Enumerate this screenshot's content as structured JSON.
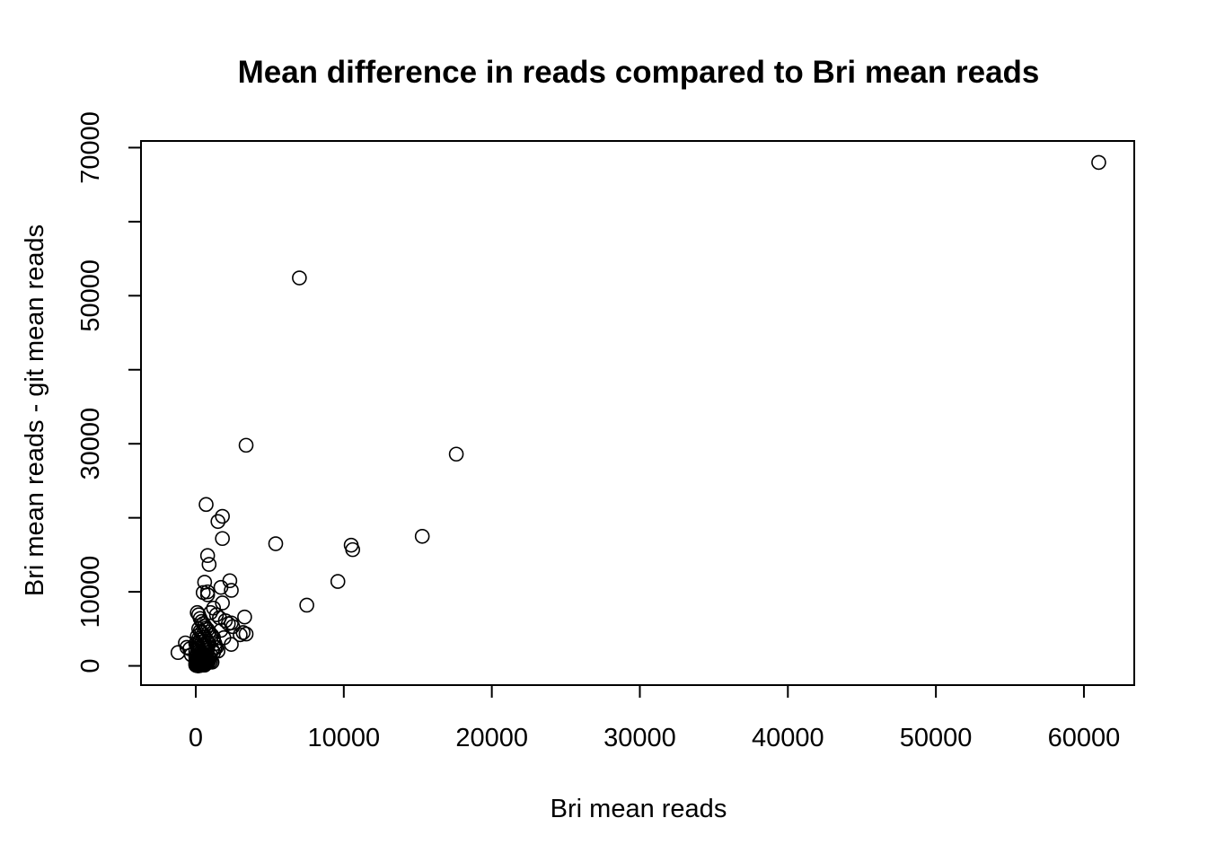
{
  "chart_data": {
    "type": "scatter",
    "title": "Mean difference in reads compared to Bri mean reads",
    "xlabel": "Bri mean reads",
    "ylabel": "Bri mean reads - git mean reads",
    "xlim": [
      -3700,
      63400
    ],
    "ylim": [
      -2600,
      70900
    ],
    "xticks": [
      0,
      10000,
      20000,
      30000,
      40000,
      50000,
      60000
    ],
    "yticks": [
      0,
      10000,
      20000,
      30000,
      40000,
      50000,
      60000,
      70000
    ],
    "ytick_labels": [
      "0",
      "10000",
      "",
      "30000",
      "",
      "50000",
      "",
      "70000"
    ],
    "grid": false,
    "marker": "open-circle",
    "x": [
      61000,
      7000,
      3400,
      17600,
      15300,
      10500,
      10600,
      9600,
      7500,
      5400,
      700,
      1800,
      1500,
      1800,
      800,
      900,
      2300,
      2400,
      800,
      500,
      1700,
      3300,
      2400,
      3200,
      3400,
      3000,
      600,
      800,
      1800,
      1200,
      1000,
      1400,
      1600,
      2000,
      2200,
      2500,
      1700,
      1900,
      2400,
      1300,
      1500,
      -1200,
      -600,
      -700,
      -400,
      -300,
      100,
      200,
      300,
      400,
      500,
      600,
      700,
      800,
      900,
      1000,
      1100,
      1200,
      200,
      300,
      400,
      500,
      600,
      700,
      800,
      900,
      100,
      200,
      300,
      400,
      500,
      600,
      700,
      800,
      0,
      50,
      100,
      150,
      200,
      250,
      300,
      400,
      500,
      600,
      700,
      800,
      900,
      1000,
      1100,
      0,
      100,
      200,
      300,
      400,
      500,
      600,
      700,
      800,
      0,
      100,
      200,
      300,
      400,
      500,
      600,
      700,
      0,
      100,
      200,
      300,
      400,
      500,
      600,
      0,
      100,
      200,
      300,
      400,
      500,
      0,
      100,
      200,
      300,
      0,
      50,
      100,
      150,
      200,
      1300,
      1400,
      1100,
      1200,
      1000,
      900,
      800
    ],
    "y": [
      68000,
      52400,
      29800,
      28600,
      17500,
      16300,
      15700,
      11400,
      8200,
      16500,
      21800,
      20200,
      19500,
      17200,
      14900,
      13700,
      11500,
      10200,
      10000,
      9900,
      10600,
      6600,
      5800,
      4500,
      4300,
      4200,
      11300,
      9600,
      8500,
      7800,
      7200,
      6900,
      6500,
      6100,
      5700,
      5300,
      4800,
      3800,
      2900,
      2500,
      2000,
      1800,
      2500,
      3100,
      2300,
      1500,
      7200,
      6900,
      6400,
      6000,
      5700,
      5400,
      5100,
      4900,
      4600,
      4300,
      4100,
      3800,
      5000,
      4700,
      4500,
      4200,
      3900,
      3600,
      3300,
      3000,
      4000,
      3700,
      3500,
      3200,
      2900,
      2700,
      2400,
      2200,
      3000,
      2800,
      2600,
      2400,
      2200,
      2000,
      1800,
      1600,
      1400,
      1200,
      1000,
      800,
      700,
      600,
      500,
      2000,
      1800,
      1600,
      1400,
      1200,
      1000,
      800,
      600,
      400,
      1200,
      1000,
      900,
      800,
      700,
      600,
      500,
      400,
      700,
      600,
      500,
      400,
      300,
      200,
      100,
      400,
      300,
      250,
      200,
      150,
      100,
      200,
      150,
      100,
      50,
      100,
      50,
      20,
      10,
      0,
      3000,
      2500,
      2200,
      1800,
      1500,
      1200,
      1000
    ]
  }
}
